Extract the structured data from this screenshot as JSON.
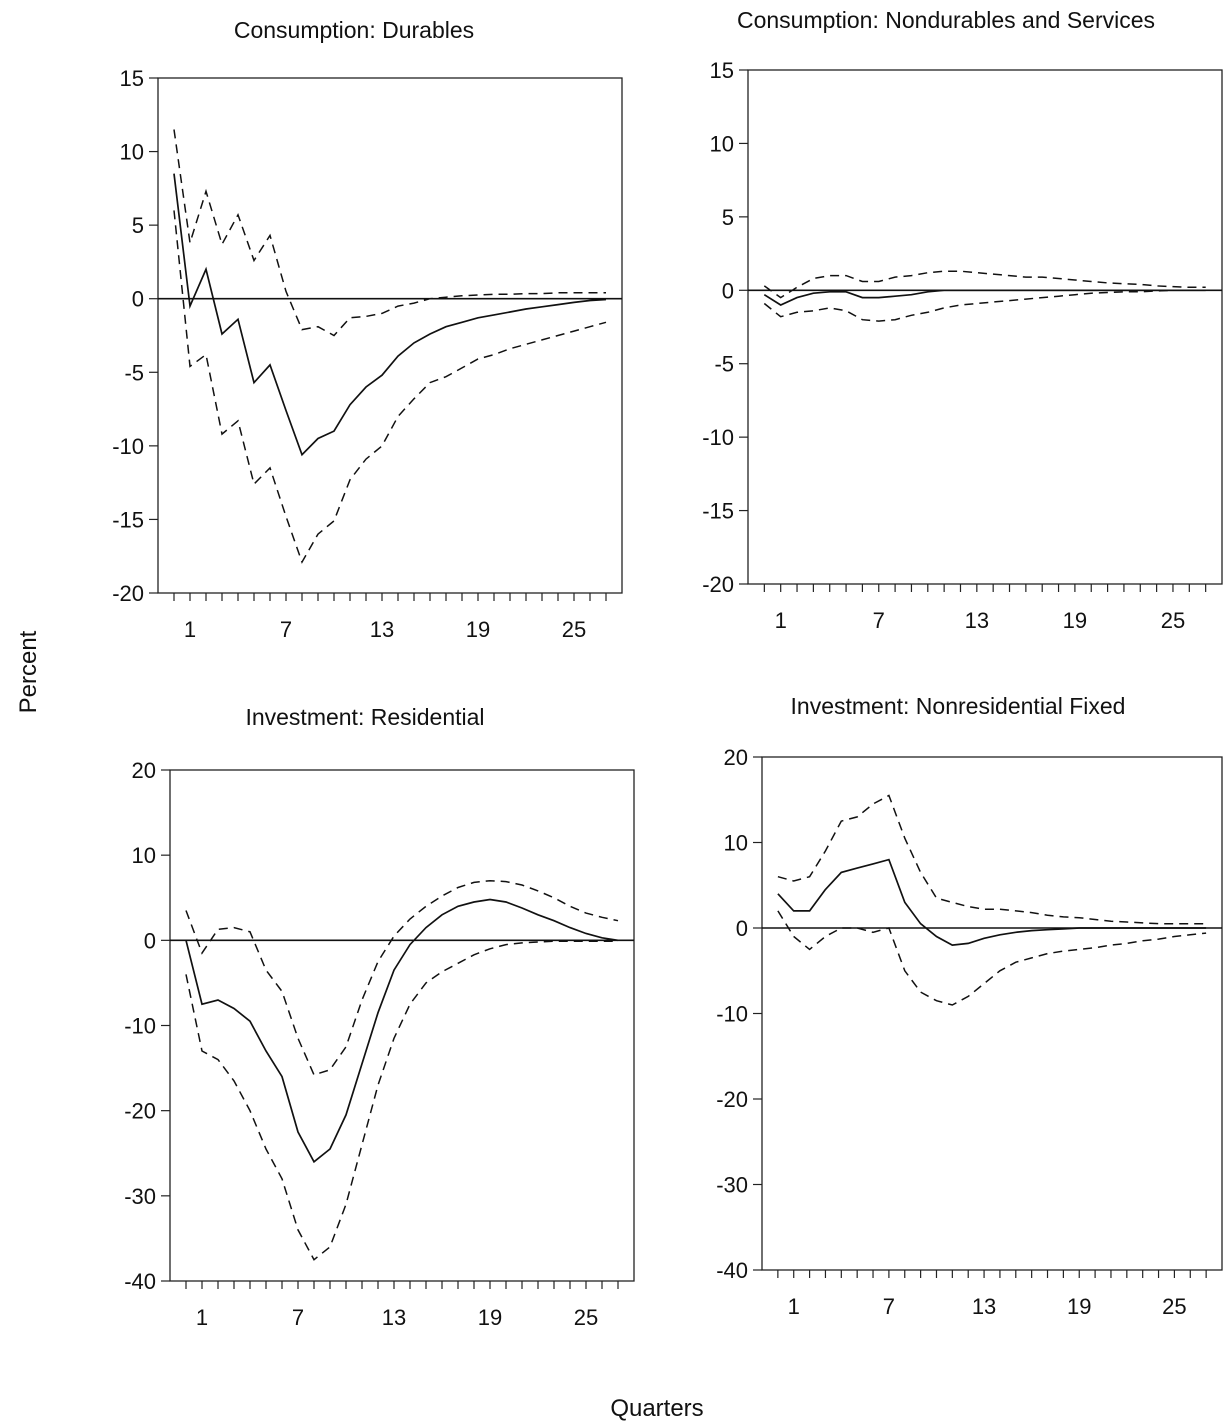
{
  "figure": {
    "ylabel": "Percent",
    "xlabel": "Quarters"
  },
  "chart_data": [
    {
      "type": "line",
      "title": "Consumption: Durables",
      "ylim": [
        -20,
        15
      ],
      "yticks": [
        15,
        10,
        5,
        0,
        -5,
        -10,
        -15,
        -20
      ],
      "xlim": [
        -1,
        28
      ],
      "xtick_labels": [
        1,
        7,
        13,
        19,
        25
      ],
      "grid": false,
      "x": [
        0,
        1,
        2,
        3,
        4,
        5,
        6,
        7,
        8,
        9,
        10,
        11,
        12,
        13,
        14,
        15,
        16,
        17,
        18,
        19,
        20,
        21,
        22,
        23,
        24,
        25,
        26,
        27
      ],
      "series": [
        {
          "role": "estimate",
          "values": [
            8.5,
            -0.5,
            2.0,
            -2.4,
            -1.4,
            -5.7,
            -4.5,
            -7.6,
            -10.6,
            -9.5,
            -9.0,
            -7.2,
            -6.0,
            -5.2,
            -3.9,
            -3.0,
            -2.4,
            -1.9,
            -1.6,
            -1.3,
            -1.1,
            -0.9,
            -0.7,
            -0.55,
            -0.4,
            -0.25,
            -0.12,
            -0.05
          ]
        },
        {
          "role": "upper-band",
          "values": [
            11.5,
            3.8,
            7.3,
            3.7,
            5.7,
            2.6,
            4.3,
            0.5,
            -2.1,
            -1.9,
            -2.5,
            -1.3,
            -1.2,
            -1.0,
            -0.5,
            -0.3,
            0.0,
            0.1,
            0.2,
            0.25,
            0.3,
            0.3,
            0.35,
            0.35,
            0.4,
            0.4,
            0.4,
            0.4
          ]
        },
        {
          "role": "lower-band",
          "values": [
            6.0,
            -4.6,
            -3.8,
            -9.2,
            -8.3,
            -12.6,
            -11.5,
            -14.8,
            -17.9,
            -16.0,
            -15.1,
            -12.3,
            -10.9,
            -10.0,
            -8.0,
            -6.8,
            -5.7,
            -5.3,
            -4.7,
            -4.1,
            -3.8,
            -3.4,
            -3.1,
            -2.8,
            -2.5,
            -2.2,
            -1.9,
            -1.6
          ]
        }
      ]
    },
    {
      "type": "line",
      "title": "Consumption: Nondurables and Services",
      "ylim": [
        -20,
        15
      ],
      "yticks": [
        15,
        10,
        5,
        0,
        -5,
        -10,
        -15,
        -20
      ],
      "xlim": [
        -1,
        28
      ],
      "xtick_labels": [
        1,
        7,
        13,
        19,
        25
      ],
      "grid": false,
      "x": [
        0,
        1,
        2,
        3,
        4,
        5,
        6,
        7,
        8,
        9,
        10,
        11,
        12,
        13,
        14,
        15,
        16,
        17,
        18,
        19,
        20,
        21,
        22,
        23,
        24,
        25,
        26,
        27
      ],
      "series": [
        {
          "role": "estimate",
          "values": [
            -0.3,
            -1.0,
            -0.5,
            -0.2,
            -0.1,
            -0.1,
            -0.5,
            -0.5,
            -0.4,
            -0.3,
            -0.1,
            0.0,
            0.0,
            0.0,
            0.0,
            0.0,
            0.0,
            0.0,
            0.0,
            0.0,
            0.0,
            0.0,
            0.0,
            0.0,
            0.0,
            0.0,
            0.0,
            0.0
          ]
        },
        {
          "role": "upper-band",
          "values": [
            0.3,
            -0.5,
            0.2,
            0.8,
            1.0,
            1.0,
            0.6,
            0.6,
            0.9,
            1.0,
            1.2,
            1.3,
            1.3,
            1.2,
            1.1,
            1.0,
            0.9,
            0.9,
            0.8,
            0.7,
            0.6,
            0.5,
            0.45,
            0.4,
            0.3,
            0.25,
            0.2,
            0.2
          ]
        },
        {
          "role": "lower-band",
          "values": [
            -0.9,
            -1.8,
            -1.5,
            -1.4,
            -1.2,
            -1.4,
            -2.0,
            -2.1,
            -2.0,
            -1.7,
            -1.5,
            -1.2,
            -1.0,
            -0.9,
            -0.8,
            -0.7,
            -0.6,
            -0.5,
            -0.4,
            -0.3,
            -0.2,
            -0.15,
            -0.1,
            -0.1,
            -0.05,
            0.0,
            0.0,
            0.0
          ]
        }
      ]
    },
    {
      "type": "line",
      "title": "Investment: Residential",
      "ylim": [
        -40,
        20
      ],
      "yticks": [
        20,
        10,
        0,
        -10,
        -20,
        -30,
        -40
      ],
      "xlim": [
        -1,
        28
      ],
      "xtick_labels": [
        1,
        7,
        13,
        19,
        25
      ],
      "grid": false,
      "x": [
        0,
        1,
        2,
        3,
        4,
        5,
        6,
        7,
        8,
        9,
        10,
        11,
        12,
        13,
        14,
        15,
        16,
        17,
        18,
        19,
        20,
        21,
        22,
        23,
        24,
        25,
        26,
        27
      ],
      "series": [
        {
          "role": "estimate",
          "values": [
            0.0,
            -7.5,
            -7.0,
            -8.0,
            -9.5,
            -13.0,
            -16.0,
            -22.5,
            -26.0,
            -24.5,
            -20.5,
            -14.5,
            -8.5,
            -3.5,
            -0.5,
            1.5,
            3.0,
            4.0,
            4.5,
            4.8,
            4.5,
            3.8,
            3.0,
            2.3,
            1.5,
            0.8,
            0.3,
            0.0
          ]
        },
        {
          "role": "upper-band",
          "values": [
            3.5,
            -1.5,
            1.3,
            1.5,
            1.0,
            -3.5,
            -6.0,
            -11.5,
            -15.8,
            -15.2,
            -12.5,
            -7.0,
            -2.5,
            0.5,
            2.5,
            4.0,
            5.2,
            6.2,
            6.8,
            7.0,
            6.9,
            6.5,
            5.8,
            5.0,
            4.0,
            3.2,
            2.7,
            2.3
          ]
        },
        {
          "role": "lower-band",
          "values": [
            -4.0,
            -13.0,
            -14.0,
            -16.5,
            -20.0,
            -24.5,
            -28.0,
            -34.0,
            -37.5,
            -36.0,
            -31.0,
            -24.0,
            -17.0,
            -11.5,
            -7.5,
            -5.0,
            -3.7,
            -2.7,
            -1.7,
            -1.0,
            -0.5,
            -0.3,
            -0.2,
            -0.1,
            -0.1,
            -0.1,
            -0.1,
            -0.1
          ]
        }
      ]
    },
    {
      "type": "line",
      "title": "Investment: Nonresidential Fixed",
      "ylim": [
        -40,
        20
      ],
      "yticks": [
        20,
        10,
        0,
        -10,
        -20,
        -30,
        -40
      ],
      "xlim": [
        -1,
        28
      ],
      "xtick_labels": [
        1,
        7,
        13,
        19,
        25
      ],
      "grid": false,
      "x": [
        0,
        1,
        2,
        3,
        4,
        5,
        6,
        7,
        8,
        9,
        10,
        11,
        12,
        13,
        14,
        15,
        16,
        17,
        18,
        19,
        20,
        21,
        22,
        23,
        24,
        25,
        26,
        27
      ],
      "series": [
        {
          "role": "estimate",
          "values": [
            4.0,
            2.0,
            2.0,
            4.5,
            6.5,
            7.0,
            7.5,
            8.0,
            3.0,
            0.5,
            -1.0,
            -2.0,
            -1.8,
            -1.2,
            -0.8,
            -0.5,
            -0.3,
            -0.2,
            -0.1,
            0.0,
            0.0,
            0.0,
            0.0,
            0.0,
            0.0,
            0.0,
            0.0,
            0.0
          ]
        },
        {
          "role": "upper-band",
          "values": [
            6.0,
            5.5,
            6.0,
            9.0,
            12.5,
            13.0,
            14.5,
            15.5,
            10.5,
            6.5,
            3.5,
            3.0,
            2.5,
            2.2,
            2.2,
            2.0,
            1.8,
            1.5,
            1.3,
            1.2,
            1.0,
            0.8,
            0.7,
            0.6,
            0.5,
            0.5,
            0.5,
            0.5
          ]
        },
        {
          "role": "lower-band",
          "values": [
            2.0,
            -1.0,
            -2.5,
            -1.0,
            0.0,
            0.0,
            -0.5,
            0.0,
            -5.0,
            -7.5,
            -8.5,
            -9.0,
            -8.0,
            -6.5,
            -5.0,
            -4.0,
            -3.5,
            -3.0,
            -2.7,
            -2.5,
            -2.3,
            -2.0,
            -1.8,
            -1.5,
            -1.3,
            -1.0,
            -0.8,
            -0.6
          ]
        }
      ]
    }
  ]
}
